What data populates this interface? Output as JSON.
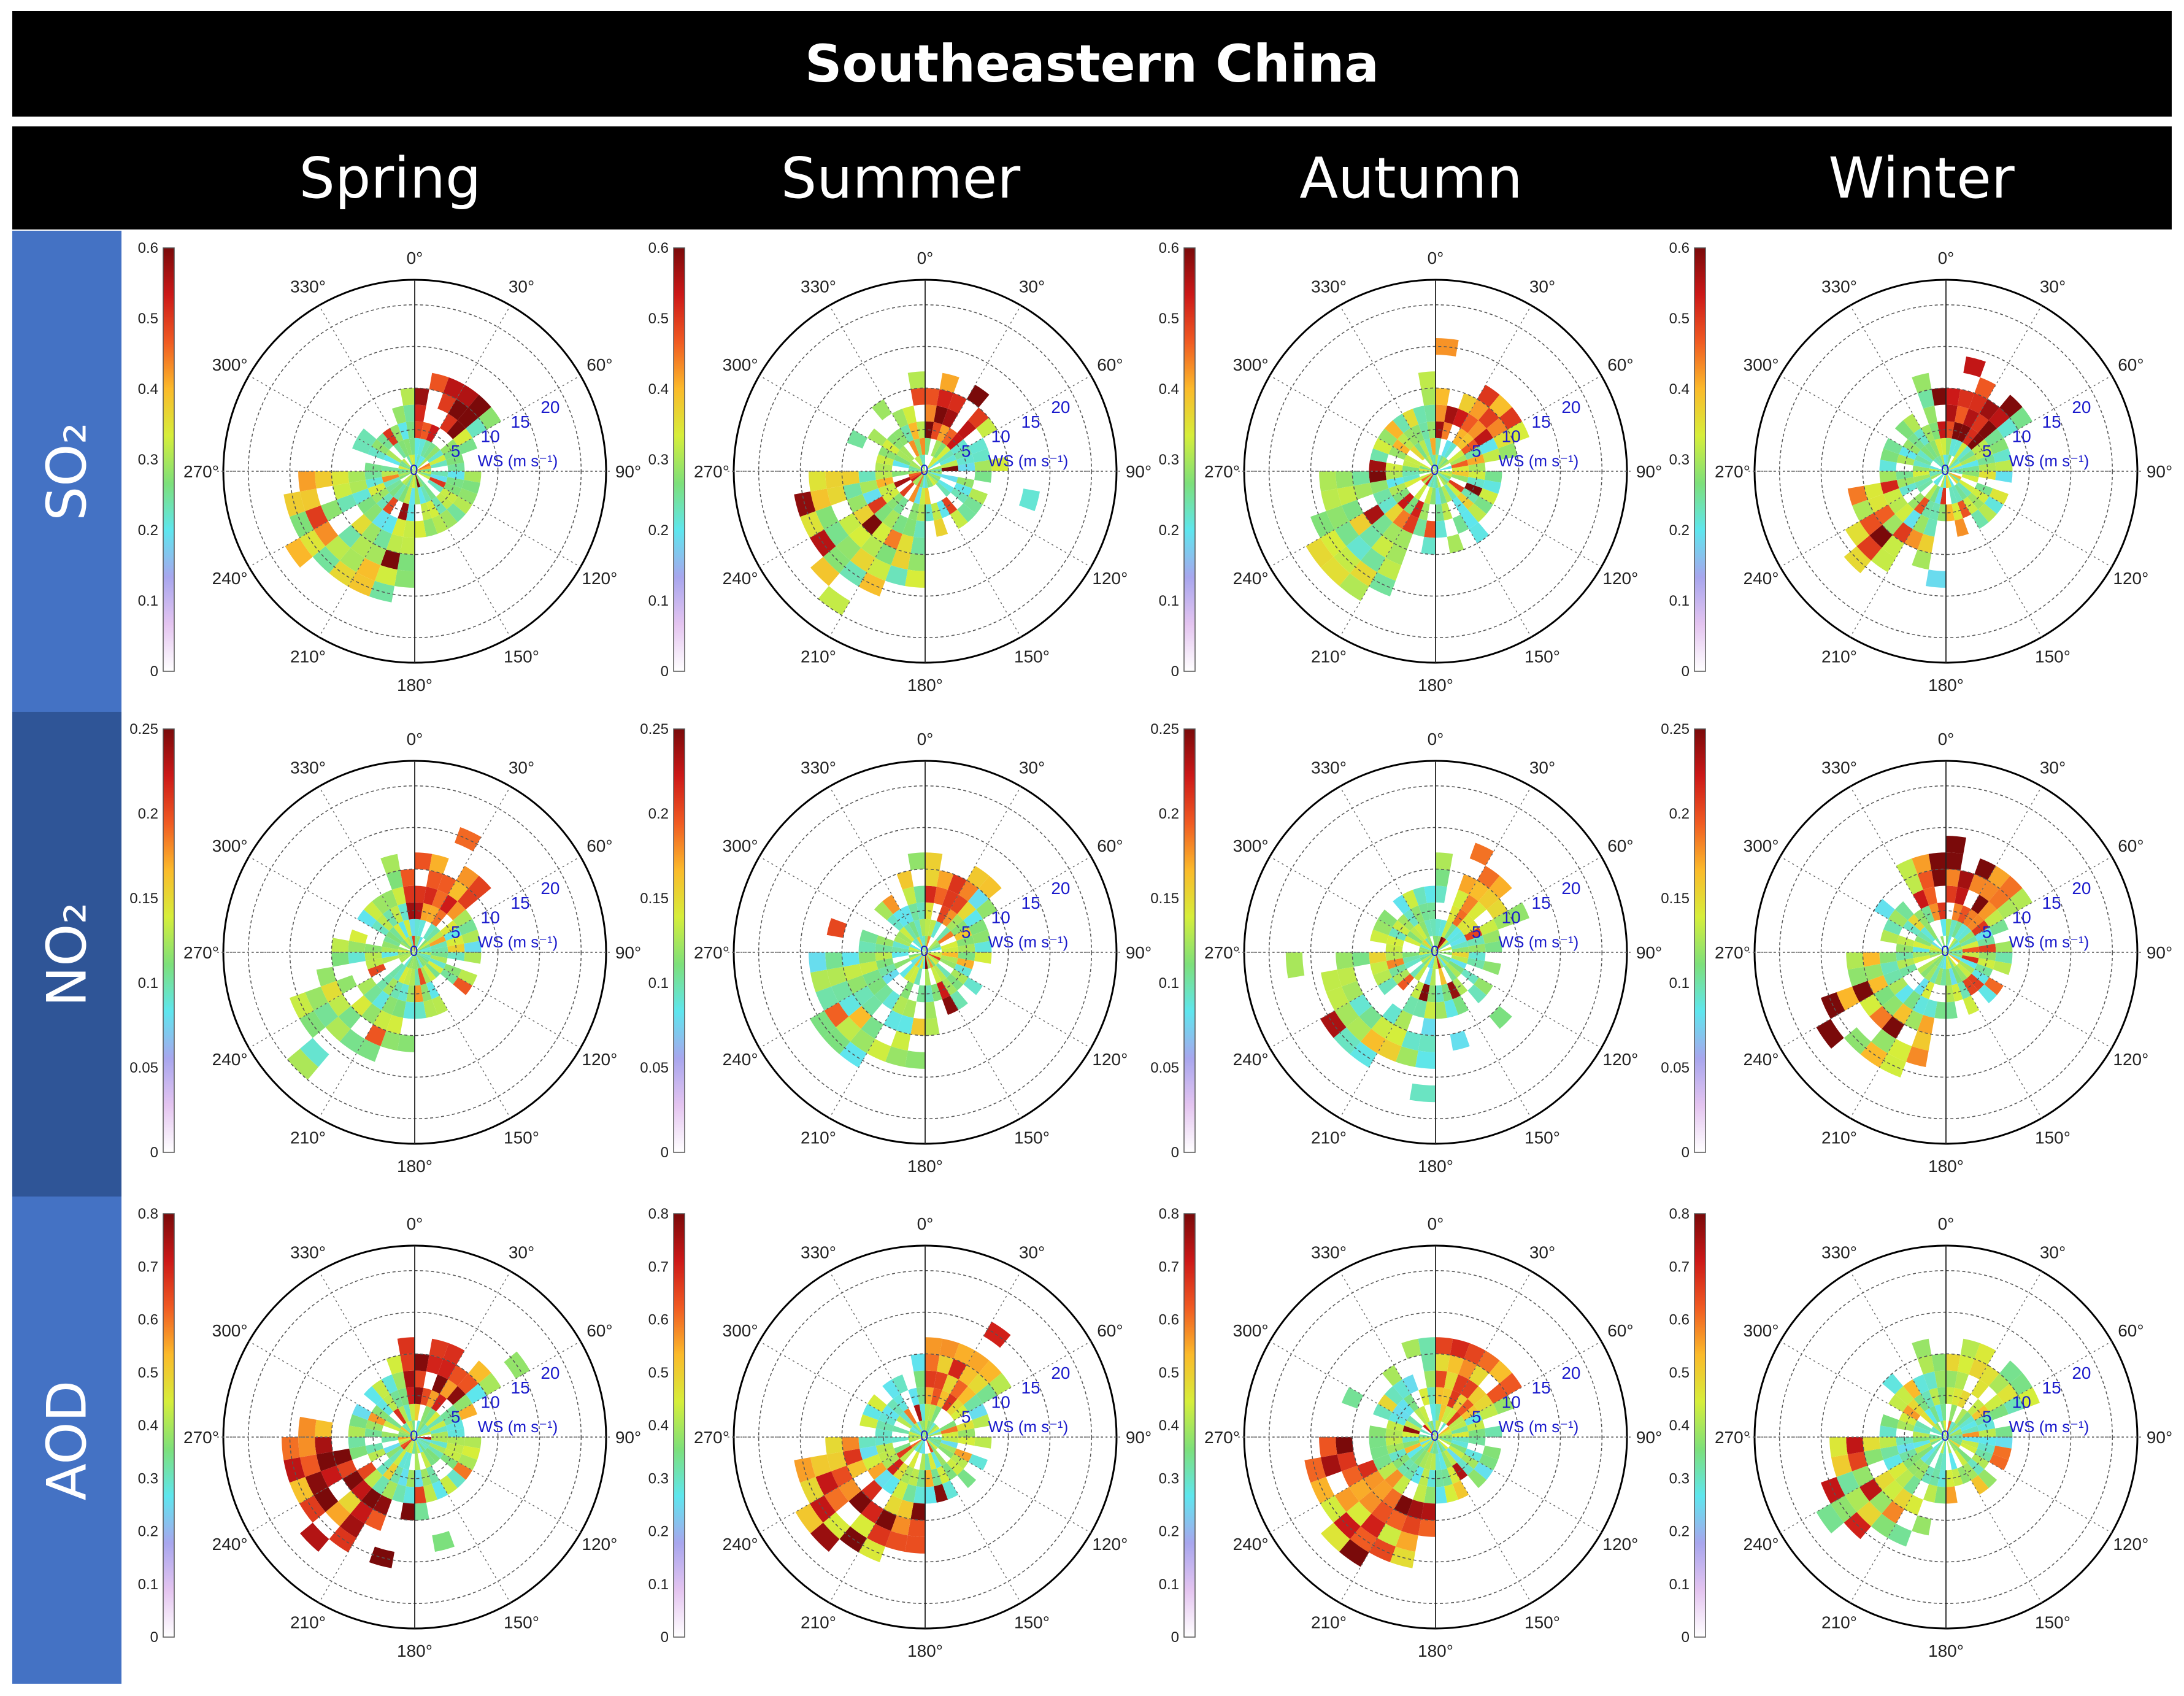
{
  "title": "Southeastern China",
  "seasons": [
    "Spring",
    "Summer",
    "Autumn",
    "Winter"
  ],
  "rows": [
    {
      "key": "SO2",
      "label": "SO₂",
      "ticks": [
        "0",
        "0.1",
        "0.2",
        "0.3",
        "0.4",
        "0.5",
        "0.6"
      ],
      "vmax": 0.6
    },
    {
      "key": "NO2",
      "label": "NO₂",
      "ticks": [
        "0",
        "0.05",
        "0.1",
        "0.15",
        "0.2",
        "0.25"
      ],
      "vmax": 0.25
    },
    {
      "key": "AOD",
      "label": "AOD",
      "ticks": [
        "0",
        "0.1",
        "0.2",
        "0.3",
        "0.4",
        "0.5",
        "0.6",
        "0.7",
        "0.8"
      ],
      "vmax": 0.8
    }
  ],
  "colors": {
    "header_bg": "#000000",
    "header_text": "#ffffff",
    "row_label_bg": [
      "#4472c4",
      "#2f5597",
      "#4472c4"
    ],
    "ws_text": "#1a1acc",
    "colormap": [
      "#ffffff",
      "#e4c4f0",
      "#a8a6ee",
      "#5ee6ee",
      "#7de07a",
      "#d6ee3a",
      "#fbba2a",
      "#f05a22",
      "#cc1818",
      "#7a0a0a"
    ]
  },
  "chart_data": {
    "type": "polar-bivariate",
    "angular_axis": {
      "label_values": [
        0,
        30,
        60,
        90,
        120,
        150,
        180,
        210,
        240,
        270,
        300,
        330
      ],
      "tick_labels": [
        "0°",
        "30°",
        "60°",
        "90°",
        "120°",
        "150°",
        "180°",
        "210°",
        "240°",
        "270°",
        "300°",
        "330°"
      ]
    },
    "radial_axis": {
      "title": "WS (m s⁻¹)",
      "rings": [
        5,
        10,
        15,
        20
      ],
      "ring_labels": [
        "5",
        "10",
        "15",
        "20"
      ],
      "center_label": "0",
      "rmax": 23
    },
    "binning": {
      "sector_width_deg": 10,
      "ws_bin_width": 2
    },
    "panels": [
      {
        "variable": "SO2",
        "season": "Spring",
        "prevailing": [
          {
            "dir": 225,
            "spread": 38,
            "ws": 13,
            "level": 0.32
          }
        ],
        "hotspot": {
          "dir": 25,
          "width": 55,
          "level": 0.55
        },
        "seed": 11
      },
      {
        "variable": "SO2",
        "season": "Summer",
        "prevailing": [
          {
            "dir": 225,
            "spread": 38,
            "ws": 13,
            "level": 0.32
          }
        ],
        "hotspot": {
          "dir": 25,
          "width": 55,
          "level": 0.55
        },
        "seed": 12
      },
      {
        "variable": "SO2",
        "season": "Autumn",
        "prevailing": [
          {
            "dir": 225,
            "spread": 38,
            "ws": 13,
            "level": 0.3
          }
        ],
        "hotspot": {
          "dir": 30,
          "width": 55,
          "level": 0.5
        },
        "seed": 13
      },
      {
        "variable": "SO2",
        "season": "Winter",
        "prevailing": [
          {
            "dir": 225,
            "spread": 30,
            "ws": 10,
            "level": 0.4
          }
        ],
        "hotspot": {
          "dir": 20,
          "width": 70,
          "level": 0.58
        },
        "seed": 14
      },
      {
        "variable": "NO2",
        "season": "Spring",
        "prevailing": [
          {
            "dir": 230,
            "spread": 40,
            "ws": 11,
            "level": 0.12
          }
        ],
        "hotspot": {
          "dir": 20,
          "width": 60,
          "level": 0.21
        },
        "seed": 21
      },
      {
        "variable": "NO2",
        "season": "Summer",
        "prevailing": [
          {
            "dir": 225,
            "spread": 40,
            "ws": 12,
            "level": 0.11
          }
        ],
        "hotspot": {
          "dir": 20,
          "width": 50,
          "level": 0.19
        },
        "seed": 22
      },
      {
        "variable": "NO2",
        "season": "Autumn",
        "prevailing": [
          {
            "dir": 225,
            "spread": 40,
            "ws": 12,
            "level": 0.11
          }
        ],
        "hotspot": {
          "dir": 35,
          "width": 50,
          "level": 0.18
        },
        "seed": 23
      },
      {
        "variable": "NO2",
        "season": "Winter",
        "prevailing": [
          {
            "dir": 230,
            "spread": 30,
            "ws": 12,
            "level": 0.15
          }
        ],
        "hotspot": {
          "dir": 15,
          "width": 80,
          "level": 0.23
        },
        "seed": 24
      },
      {
        "variable": "AOD",
        "season": "Spring",
        "prevailing": [
          {
            "dir": 230,
            "spread": 40,
            "ws": 13,
            "level": 0.68
          }
        ],
        "hotspot": {
          "dir": 20,
          "width": 70,
          "level": 0.7
        },
        "seed": 31
      },
      {
        "variable": "AOD",
        "season": "Summer",
        "prevailing": [
          {
            "dir": 225,
            "spread": 40,
            "ws": 13,
            "level": 0.62
          }
        ],
        "hotspot": {
          "dir": 25,
          "width": 60,
          "level": 0.62
        },
        "seed": 32
      },
      {
        "variable": "AOD",
        "season": "Autumn",
        "prevailing": [
          {
            "dir": 225,
            "spread": 40,
            "ws": 13,
            "level": 0.62
          }
        ],
        "hotspot": {
          "dir": 30,
          "width": 60,
          "level": 0.6
        },
        "seed": 33
      },
      {
        "variable": "AOD",
        "season": "Winter",
        "prevailing": [
          {
            "dir": 230,
            "spread": 35,
            "ws": 12,
            "level": 0.42
          }
        ],
        "hotspot": {
          "dir": 25,
          "width": 70,
          "level": 0.45
        },
        "seed": 34
      }
    ]
  }
}
